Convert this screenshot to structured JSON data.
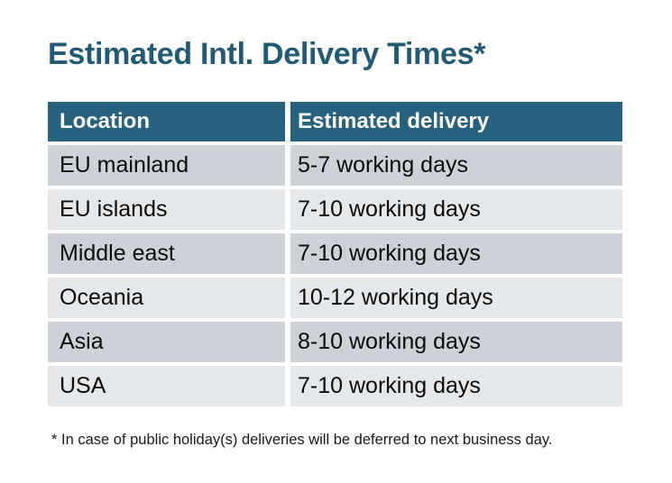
{
  "title": "Estimated Intl. Delivery Times*",
  "footnote": "* In case of public holiday(s) deliveries will be deferred to next business day.",
  "chart_data": {
    "type": "table",
    "title": "Estimated Intl. Delivery Times*",
    "columns": [
      "Location",
      "Estimated delivery"
    ],
    "rows": [
      [
        "EU mainland",
        "5-7 working days"
      ],
      [
        "EU islands",
        "7-10 working days"
      ],
      [
        "Middle east",
        "7-10 working days"
      ],
      [
        "Oceania",
        "10-12 working days"
      ],
      [
        "Asia",
        "8-10 working days"
      ],
      [
        "USA",
        "7-10 working days"
      ]
    ],
    "footnote": "* In case of public holiday(s) deliveries will be deferred to next business day."
  },
  "colors": {
    "page_bg": "#FFFFFF",
    "title_text": "#1F5A77",
    "header_bg": "#266180",
    "header_text": "#FFFFFF",
    "row_dark_bg": "#CDD1D8",
    "row_light_bg": "#E5E8EB",
    "body_text": "#0B0B0B",
    "footnote_text": "#1A1A1A"
  }
}
